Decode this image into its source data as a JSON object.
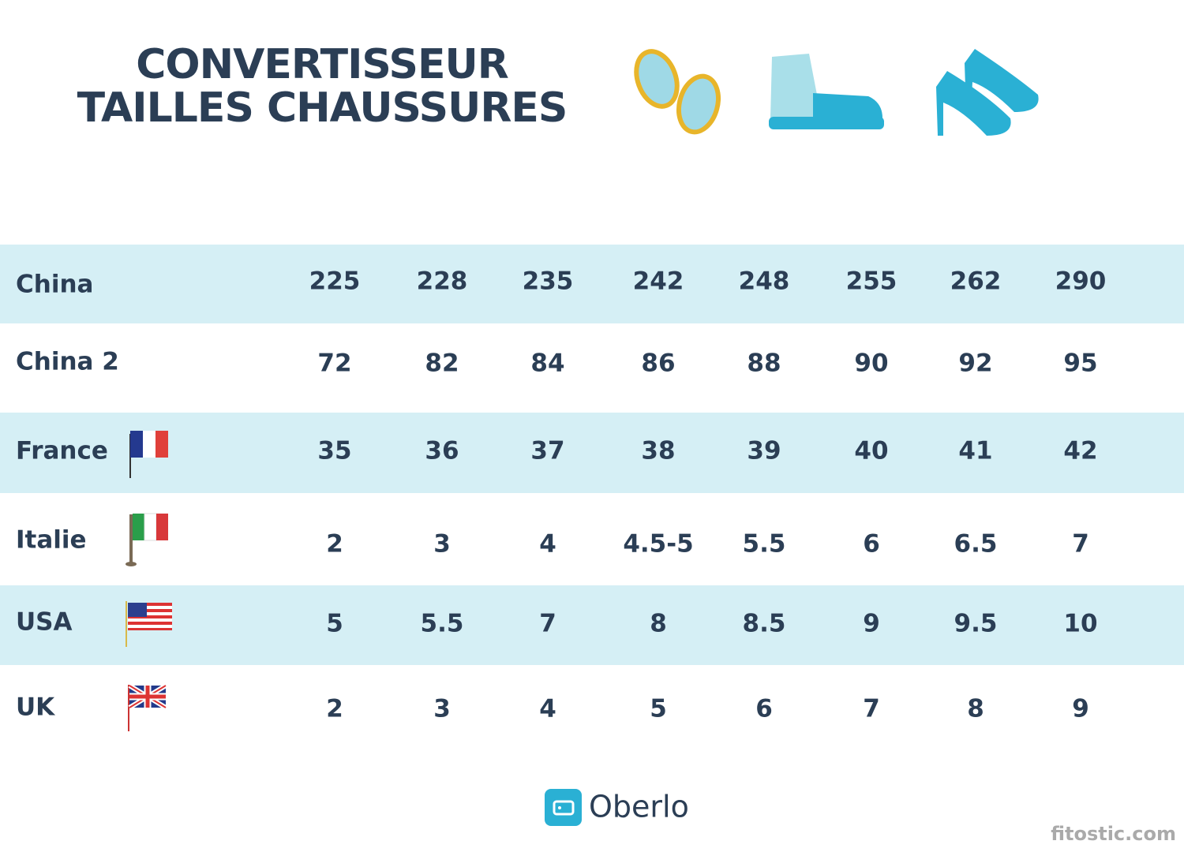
{
  "header": {
    "title": [
      "CONVERTISSEUR",
      "TAILLES CHAUSSURES"
    ]
  },
  "table": {
    "rows": [
      {
        "label": "China",
        "values": [
          "225",
          "228",
          "235",
          "242",
          "248",
          "255",
          "262",
          "290"
        ]
      },
      {
        "label": "China 2",
        "values": [
          "72",
          "82",
          "84",
          "86",
          "88",
          "90",
          "92",
          "95"
        ]
      },
      {
        "label": "France",
        "values": [
          "35",
          "36",
          "37",
          "38",
          "39",
          "40",
          "41",
          "42"
        ]
      },
      {
        "label": "Italie",
        "values": [
          "2",
          "3",
          "4",
          "4.5-5",
          "5.5",
          "6",
          "6.5",
          "7"
        ]
      },
      {
        "label": "USA",
        "values": [
          "5",
          "5.5",
          "7",
          "8",
          "8.5",
          "9",
          "9.5",
          "10"
        ]
      },
      {
        "label": "UK",
        "values": [
          "2",
          "3",
          "4",
          "5",
          "6",
          "7",
          "8",
          "9"
        ]
      }
    ]
  },
  "footer": {
    "logo": "Oberlo",
    "watermark": "fitostic.com"
  }
}
